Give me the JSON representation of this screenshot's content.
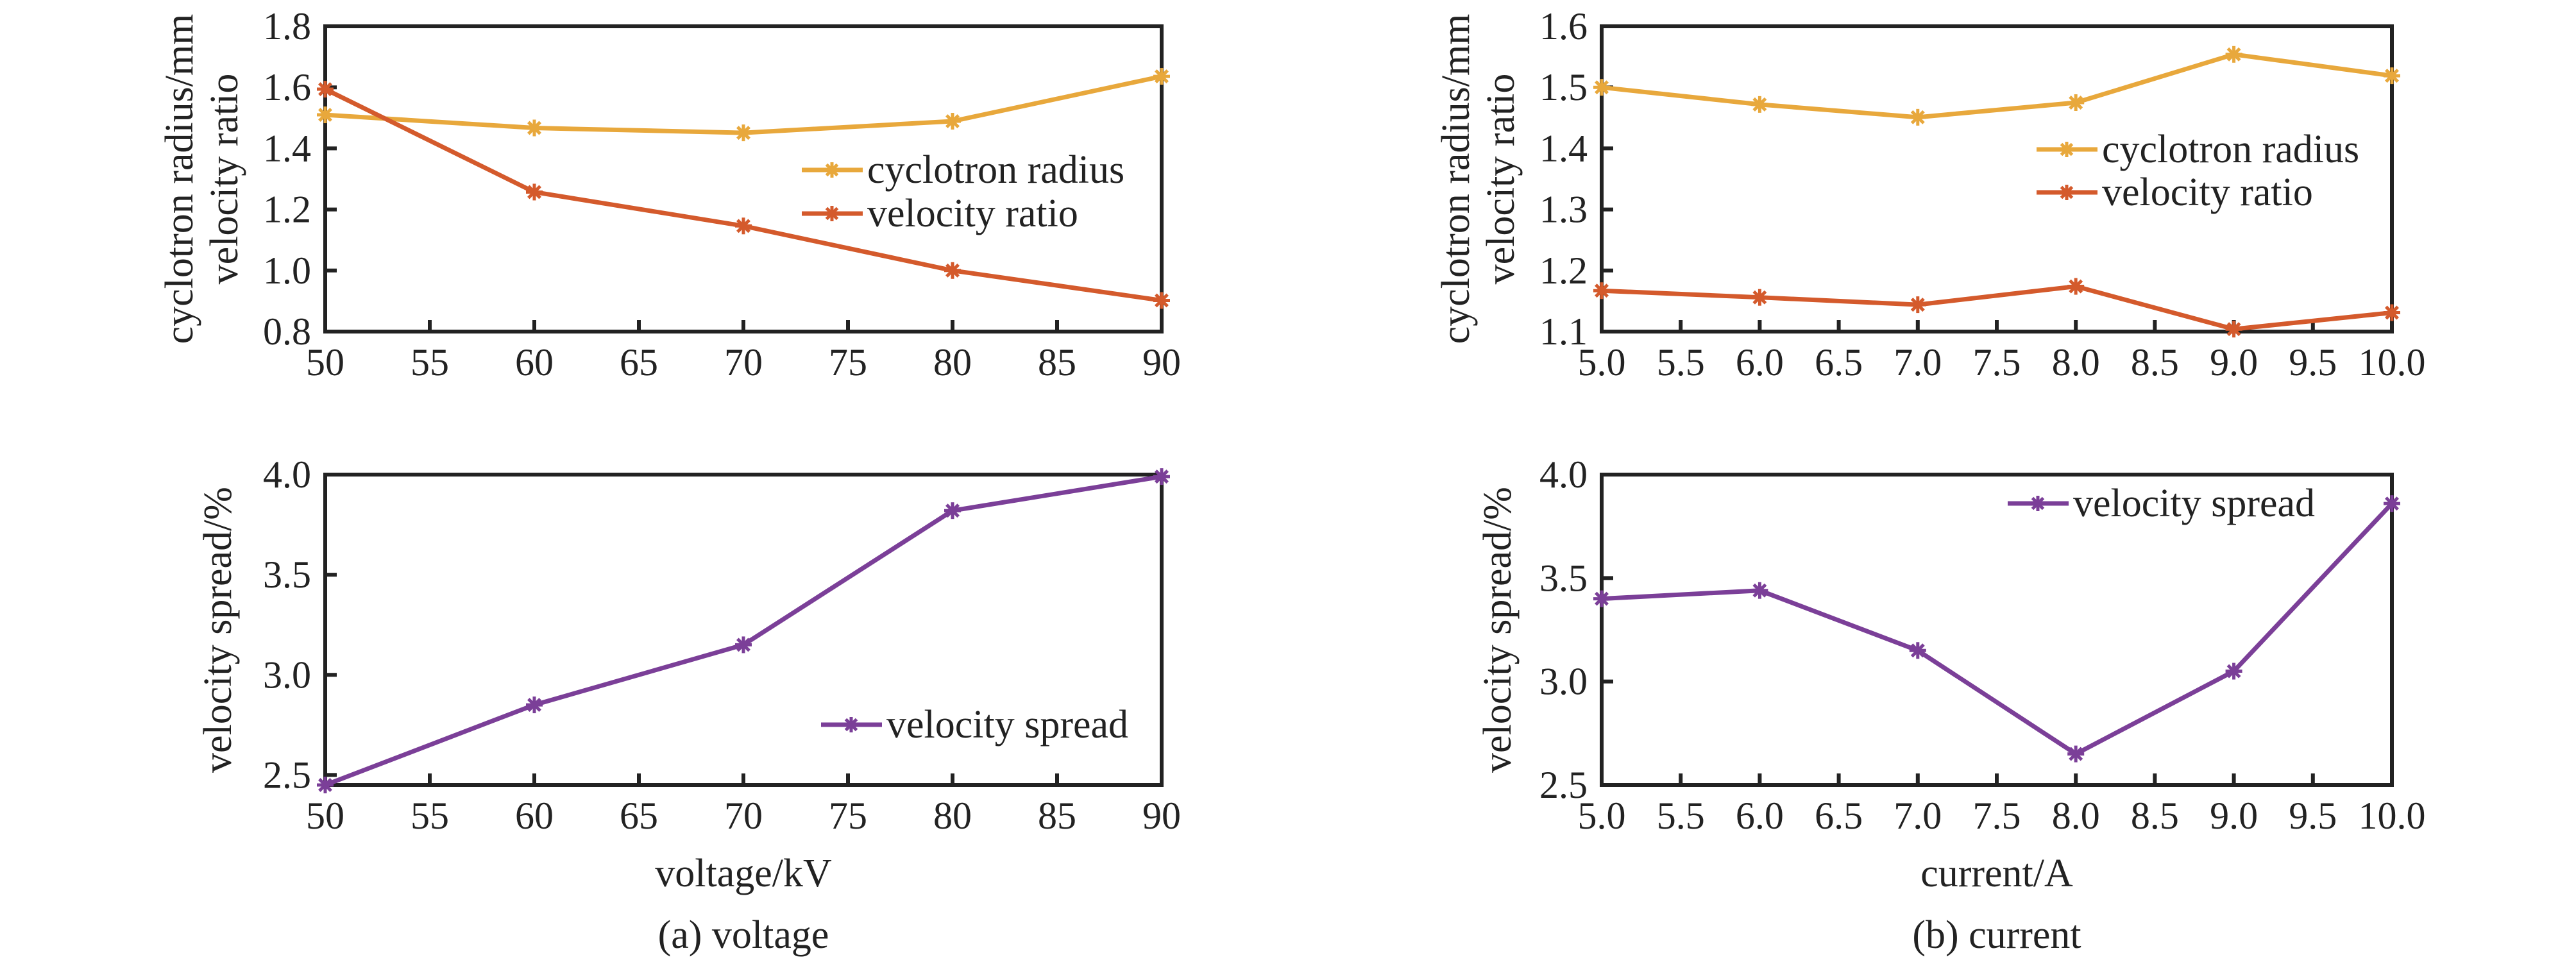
{
  "figure": {
    "captions": [
      "(a) voltage",
      "(b) current"
    ],
    "colors": {
      "cyclotron_radius": "#E8A83C",
      "velocity_ratio": "#D45A2C",
      "velocity_spread": "#7B3F98",
      "axis": "#222222"
    }
  },
  "chart_data": [
    {
      "id": "a-top",
      "type": "line",
      "panel": "(a) voltage",
      "title": "",
      "xlabel": "",
      "ylabel": [
        "cyclotron radius/mm",
        "velocity ratio"
      ],
      "x": [
        50,
        60,
        70,
        80,
        90
      ],
      "xlim": [
        50,
        90
      ],
      "xticks": [
        50,
        55,
        60,
        65,
        70,
        75,
        80,
        85,
        90
      ],
      "xtick_labels": [
        "50",
        "55",
        "60",
        "65",
        "70",
        "75",
        "80",
        "85",
        "90"
      ],
      "ylim": [
        0.8,
        1.8
      ],
      "yticks": [
        0.8,
        1.0,
        1.2,
        1.4,
        1.6,
        1.8
      ],
      "ytick_labels": [
        "0.8",
        "1.0",
        "1.2",
        "1.4",
        "1.6",
        "1.8"
      ],
      "grid": false,
      "legend": "center-right",
      "series": [
        {
          "name": "cyclotron radius",
          "color_key": "cyclotron_radius",
          "marker": "asterisk",
          "values": [
            1.51,
            1.467,
            1.451,
            1.489,
            1.636
          ]
        },
        {
          "name": "velocity ratio",
          "color_key": "velocity_ratio",
          "marker": "asterisk",
          "values": [
            1.594,
            1.257,
            1.146,
            1.0,
            0.902
          ]
        }
      ]
    },
    {
      "id": "a-bottom",
      "type": "line",
      "panel": "(a) voltage",
      "title": "",
      "xlabel": "voltage/kV",
      "ylabel": [
        "velocity spread/%"
      ],
      "x": [
        50,
        60,
        70,
        80,
        90
      ],
      "xlim": [
        50,
        90
      ],
      "xticks": [
        50,
        55,
        60,
        65,
        70,
        75,
        80,
        85,
        90
      ],
      "xtick_labels": [
        "50",
        "55",
        "60",
        "65",
        "70",
        "75",
        "80",
        "85",
        "90"
      ],
      "ylim": [
        2.45,
        4.0
      ],
      "yticks": [
        2.5,
        3.0,
        3.5,
        4.0
      ],
      "ytick_labels": [
        "2.5",
        "3.0",
        "3.5",
        "4.0"
      ],
      "grid": false,
      "legend": "bottom-right",
      "series": [
        {
          "name": "velocity spread",
          "color_key": "velocity_spread",
          "marker": "asterisk",
          "values": [
            2.45,
            2.85,
            3.15,
            3.82,
            3.99
          ]
        }
      ]
    },
    {
      "id": "b-top",
      "type": "line",
      "panel": "(b) current",
      "title": "",
      "xlabel": "",
      "ylabel": [
        "cyclotron radius/mm",
        "velocity ratio"
      ],
      "x": [
        5.0,
        6.0,
        7.0,
        8.0,
        9.0,
        10.0
      ],
      "xlim": [
        5.0,
        10.0
      ],
      "xticks": [
        5.0,
        5.5,
        6.0,
        6.5,
        7.0,
        7.5,
        8.0,
        8.5,
        9.0,
        9.5,
        10.0
      ],
      "xtick_labels": [
        "5.0",
        "5.5",
        "6.0",
        "6.5",
        "7.0",
        "7.5",
        "8.0",
        "8.5",
        "9.0",
        "9.5",
        "10.0"
      ],
      "ylim": [
        1.1,
        1.6
      ],
      "yticks": [
        1.1,
        1.2,
        1.3,
        1.4,
        1.5,
        1.6
      ],
      "ytick_labels": [
        "1.1",
        "1.2",
        "1.3",
        "1.4",
        "1.5",
        "1.6"
      ],
      "grid": false,
      "legend": "center-right",
      "series": [
        {
          "name": "cyclotron radius",
          "color_key": "cyclotron_radius",
          "marker": "asterisk",
          "values": [
            1.5,
            1.472,
            1.451,
            1.475,
            1.554,
            1.519
          ]
        },
        {
          "name": "velocity ratio",
          "color_key": "velocity_ratio",
          "marker": "asterisk",
          "values": [
            1.167,
            1.156,
            1.144,
            1.174,
            1.104,
            1.131
          ]
        }
      ]
    },
    {
      "id": "b-bottom",
      "type": "line",
      "panel": "(b) current",
      "title": "",
      "xlabel": "current/A",
      "ylabel": [
        "velocity spread/%"
      ],
      "x": [
        5.0,
        6.0,
        7.0,
        8.0,
        9.0,
        10.0
      ],
      "xlim": [
        5.0,
        10.0
      ],
      "xticks": [
        5.0,
        5.5,
        6.0,
        6.5,
        7.0,
        7.5,
        8.0,
        8.5,
        9.0,
        9.5,
        10.0
      ],
      "xtick_labels": [
        "5.0",
        "5.5",
        "6.0",
        "6.5",
        "7.0",
        "7.5",
        "8.0",
        "8.5",
        "9.0",
        "9.5",
        "10.0"
      ],
      "ylim": [
        2.5,
        4.0
      ],
      "yticks": [
        2.5,
        3.0,
        3.5,
        4.0
      ],
      "ytick_labels": [
        "2.5",
        "3.0",
        "3.5",
        "4.0"
      ],
      "grid": false,
      "legend": "top-right",
      "series": [
        {
          "name": "velocity spread",
          "color_key": "velocity_spread",
          "marker": "asterisk",
          "values": [
            3.4,
            3.44,
            3.15,
            2.65,
            3.05,
            3.86
          ]
        }
      ]
    }
  ]
}
